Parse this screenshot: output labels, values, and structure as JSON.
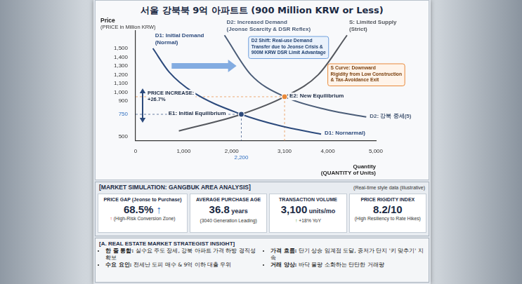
{
  "chart_data": {
    "type": "line",
    "title": "서울 강북북 9억 아파트트 (900 Million KRW or Less)",
    "y_label": [
      "Price",
      "(PRICE in Million KRW)"
    ],
    "x_label": [
      "Quantity",
      "(QUANTITY of Units)"
    ],
    "xlim": [
      0,
      5000
    ],
    "xticks": [
      0,
      {
        "value": 1000,
        "label": "1,000"
      },
      {
        "value": 2000,
        "label": "2,000"
      },
      {
        "value": 2200,
        "label": "2,200"
      },
      {
        "value": 3100,
        "label": "3,100"
      },
      {
        "value": 4000,
        "label": "4,000"
      },
      {
        "value": 5000,
        "label": "5,000"
      }
    ],
    "ylim": [
      450,
      1700
    ],
    "yticks": [
      500,
      750,
      900,
      {
        "value": 1000,
        "label": "1,000"
      },
      {
        "value": 1100,
        "label": "1,100"
      },
      {
        "value": 1200,
        "label": "1,200"
      },
      {
        "value": 1300,
        "label": "1,300"
      },
      {
        "value": 1400,
        "label": "1,400"
      },
      {
        "value": 1500,
        "label": "1,500"
      }
    ],
    "grid": false,
    "series": [
      {
        "name": "D1: Initial Demand (Normal)",
        "end_label": "D1: Nornarmal)",
        "color": "#2c4a7c",
        "line_style": "solid",
        "x": [
          360,
          700,
          1200,
          2200,
          3000,
          3860
        ],
        "values": [
          1500,
          1230,
          1000,
          750,
          620,
          525
        ]
      },
      {
        "name": "D2: Increased Demand (Jeonse Scarcity & DSR Reflex)",
        "end_label": "D2: 강북 중세(5)",
        "color": "#4b5d78",
        "line_style": "solid",
        "x": [
          1850,
          2400,
          3100,
          4000,
          4800
        ],
        "values": [
          1650,
          1200,
          950,
          800,
          720
        ]
      },
      {
        "name": "S: Limited Supply (Strict)",
        "color": "#55585e",
        "line_style": "solid",
        "x": [
          900,
          2200,
          3100,
          3800,
          4400
        ],
        "values": [
          560,
          750,
          950,
          1200,
          1650
        ]
      }
    ],
    "points": [
      {
        "label": "E1: Initial Equilibrium",
        "x": 2200,
        "y": 750,
        "color": "#2c4a7c"
      },
      {
        "label": "E2: New Equilibrium",
        "x": 3100,
        "y": 950,
        "color": "#e8893a"
      }
    ],
    "price_change": [
      "PRICE INCREASE:",
      "+26.7%"
    ],
    "shift_note": [
      "D2 Shift: Real-use Demand",
      "Transfer due to Jeonse Crisis &",
      "900M KRW DSR Limit Advantage"
    ],
    "supply_note": [
      "S Curve: Downward",
      "Rigidity from Low Construction",
      "& Tax-Avoidance Exit"
    ]
  },
  "market_simulation": {
    "title": "[MARKET SIMULATION: GANGBUK AREA ANALYSIS]",
    "note": "(Real-time style data (illustrative)",
    "cards": [
      {
        "label": "PRICE GAP (Jeonse to Purchase)",
        "value": "68.5%",
        "value_icon": "↑",
        "value_icon_color": "#2f6fc0",
        "sub": "(High-Risk Conversion Zone)",
        "sub_icon": "↑",
        "sub_icon_color": "#d9342b"
      },
      {
        "label": "AVERAGE PURCHASE AGE",
        "value": "36.8",
        "unit": "years",
        "sub": "(3040 Generation Leading)"
      },
      {
        "label": "TRANSACTION VOLUME",
        "value": "3,100",
        "unit": "units/mo",
        "sub": "+18% YoY",
        "sub_icon": "↑",
        "sub_icon_color": "#2e9a3e"
      },
      {
        "label": "PRICE RIGIDITY INDEX",
        "value": "8.2/10",
        "sub": "(High Resiliency to Rate Hikes)"
      }
    ]
  },
  "insight": {
    "title": "[A. REAL ESTATE MARKET STRATEGIST INSIGHT]",
    "columns": [
      [
        "한 줄 통합: 실수요 주도 장세, 강북 아파트 가격 하방 경직성 확보",
        "수요 요인: 전세난 도피 매수 & 9억 이하 대출 우위"
      ],
      [
        "가격 흐름: 단기 상승 임계점 도달, 중저가 단지 '키 맞추기' 지속",
        "거래 양상: 바닥 물량 소화하는 탄탄한 거래량"
      ]
    ]
  }
}
